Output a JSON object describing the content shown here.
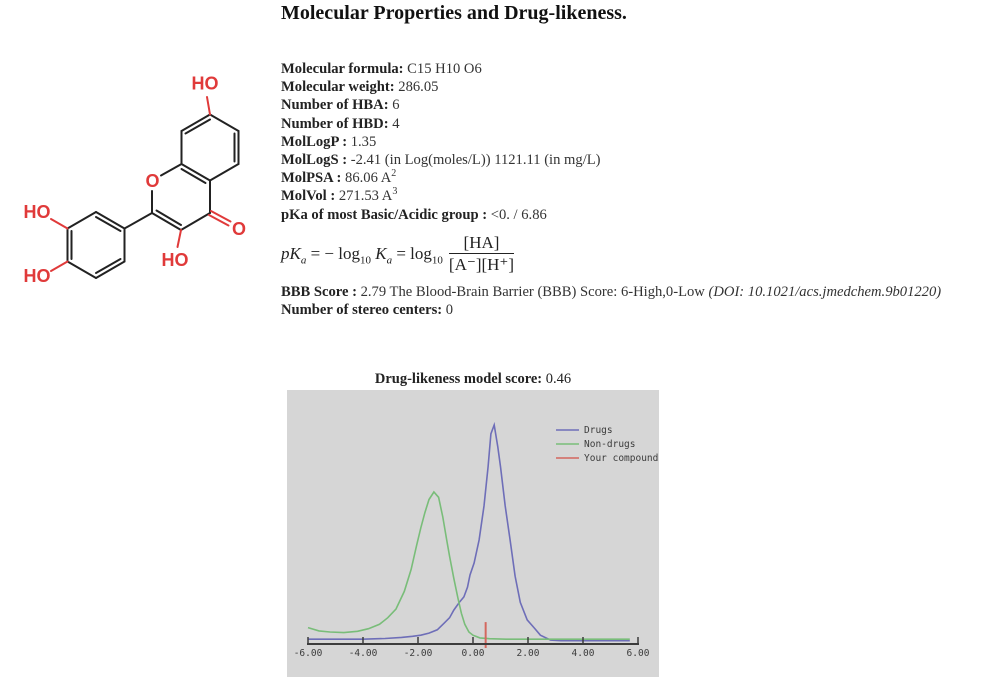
{
  "page": {
    "title": "Molecular Properties and Drug-likeness."
  },
  "molecule": {
    "bond_color": "#222222",
    "heteroatom_color": "#e03a3a",
    "labels": {
      "oh_top": "HO",
      "oh_left_upper": "HO",
      "oh_left_lower": "HO",
      "oh_bottom": "HO",
      "ring_o": "O",
      "carbonyl_o": "O"
    }
  },
  "properties": [
    {
      "label": "Molecular formula:",
      "value": " C15 H10 O6"
    },
    {
      "label": "Molecular weight:",
      "value": " 286.05"
    },
    {
      "label": "Number of HBA:",
      "value": " 6"
    },
    {
      "label": "Number of HBD:",
      "value": " 4"
    },
    {
      "label": "MolLogP :",
      "value": " 1.35"
    },
    {
      "label": "MolLogS :",
      "value": " -2.41 (in Log(moles/L)) 1121.11 (in mg/L)"
    },
    {
      "label": "MolPSA :",
      "value": " 86.06 A",
      "sup": "2"
    },
    {
      "label": "MolVol :",
      "value": " 271.53 A",
      "sup": "3"
    },
    {
      "label": "pKa of most Basic/Acidic group :",
      "value": " <0. / 6.86"
    }
  ],
  "pka_formula": {
    "lhs": "pK",
    "lhs_sub": "a",
    "eq1": " = − log",
    "sub10a": "10",
    "K1": " K",
    "a1": "a",
    "eq2": " = log",
    "sub10b": "10",
    "numerator": "[HA]",
    "denominator": "[A⁻][H⁺]"
  },
  "bbb": {
    "label": "BBB Score :",
    "value": " 2.79 The Blood-Brain Barrier (BBB) Score: 6-High,0-Low ",
    "doi": "(DOI: 10.1021/acs.jmedchem.9b01220)"
  },
  "stereo": {
    "label": "Number of stereo centers:",
    "value": " 0"
  },
  "chart_data": {
    "type": "line",
    "title": "Drug-likeness model score: 0.46",
    "title_label": "Drug-likeness model score:",
    "title_value": " 0.46",
    "xlabel": "",
    "ylabel": "",
    "xlim": [
      -6,
      6
    ],
    "ylim": [
      0,
      1.05
    ],
    "grid": false,
    "background": "#d6d6d6",
    "axis_color": "#3c3c3c",
    "x_ticks": [
      -6,
      -4,
      -2,
      0,
      2,
      4,
      6
    ],
    "x_tick_labels": [
      "-6.00",
      "-4.00",
      "-2.00",
      "0.00",
      "2.00",
      "4.00",
      "6.00"
    ],
    "legend_position": "top-right",
    "legend": [
      {
        "label": "Drugs",
        "color": "#6e6eb8"
      },
      {
        "label": "Non-drugs",
        "color": "#79bd79"
      },
      {
        "label": "Your compound",
        "color": "#d4675e"
      }
    ],
    "series": [
      {
        "name": "Drugs",
        "color": "#6e6eb8",
        "points": [
          [
            -6,
            0.022
          ],
          [
            -5,
            0.022
          ],
          [
            -4,
            0.022
          ],
          [
            -3.2,
            0.025
          ],
          [
            -2.6,
            0.03
          ],
          [
            -2.2,
            0.035
          ],
          [
            -1.9,
            0.04
          ],
          [
            -1.6,
            0.05
          ],
          [
            -1.3,
            0.065
          ],
          [
            -1.05,
            0.095
          ],
          [
            -0.85,
            0.12
          ],
          [
            -0.7,
            0.155
          ],
          [
            -0.5,
            0.19
          ],
          [
            -0.33,
            0.215
          ],
          [
            -0.2,
            0.26
          ],
          [
            -0.11,
            0.315
          ],
          [
            0.04,
            0.37
          ],
          [
            0.22,
            0.475
          ],
          [
            0.4,
            0.63
          ],
          [
            0.55,
            0.81
          ],
          [
            0.65,
            0.96
          ],
          [
            0.77,
            1.0
          ],
          [
            0.9,
            0.9
          ],
          [
            1.0,
            0.81
          ],
          [
            1.17,
            0.63
          ],
          [
            1.35,
            0.475
          ],
          [
            1.53,
            0.31
          ],
          [
            1.72,
            0.19
          ],
          [
            1.97,
            0.11
          ],
          [
            2.23,
            0.073
          ],
          [
            2.45,
            0.04
          ],
          [
            2.82,
            0.018
          ],
          [
            3.2,
            0.015
          ],
          [
            4,
            0.015
          ],
          [
            5,
            0.015
          ],
          [
            5.7,
            0.015
          ]
        ]
      },
      {
        "name": "Non-drugs",
        "color": "#79bd79",
        "points": [
          [
            -6,
            0.075
          ],
          [
            -5.6,
            0.06
          ],
          [
            -5.2,
            0.055
          ],
          [
            -4.7,
            0.052
          ],
          [
            -4.2,
            0.058
          ],
          [
            -3.8,
            0.07
          ],
          [
            -3.4,
            0.09
          ],
          [
            -3.1,
            0.12
          ],
          [
            -2.8,
            0.16
          ],
          [
            -2.5,
            0.24
          ],
          [
            -2.25,
            0.34
          ],
          [
            -2.05,
            0.45
          ],
          [
            -1.9,
            0.53
          ],
          [
            -1.75,
            0.6
          ],
          [
            -1.6,
            0.66
          ],
          [
            -1.42,
            0.694
          ],
          [
            -1.25,
            0.67
          ],
          [
            -1.1,
            0.58
          ],
          [
            -0.95,
            0.47
          ],
          [
            -0.85,
            0.4
          ],
          [
            -0.7,
            0.3
          ],
          [
            -0.55,
            0.21
          ],
          [
            -0.42,
            0.14
          ],
          [
            -0.3,
            0.09
          ],
          [
            -0.15,
            0.055
          ],
          [
            0,
            0.04
          ],
          [
            0.25,
            0.028
          ],
          [
            0.6,
            0.024
          ],
          [
            1.2,
            0.022
          ],
          [
            2,
            0.022
          ],
          [
            3,
            0.022
          ],
          [
            4,
            0.022
          ],
          [
            5,
            0.022
          ],
          [
            5.7,
            0.022
          ]
        ]
      }
    ],
    "compound_marker": {
      "name": "Your compound",
      "color": "#d4675e",
      "x": 0.46,
      "height": 0.1
    }
  }
}
